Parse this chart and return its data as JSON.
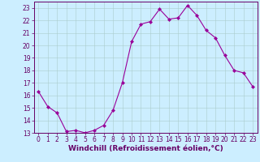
{
  "x": [
    0,
    1,
    2,
    3,
    4,
    5,
    6,
    7,
    8,
    9,
    10,
    11,
    12,
    13,
    14,
    15,
    16,
    17,
    18,
    19,
    20,
    21,
    22,
    23
  ],
  "y": [
    16.3,
    15.1,
    14.6,
    13.1,
    13.2,
    13.0,
    13.2,
    13.6,
    14.8,
    17.0,
    20.3,
    21.7,
    21.9,
    22.9,
    22.1,
    22.2,
    23.2,
    22.4,
    21.2,
    20.6,
    19.2,
    18.0,
    17.8,
    16.7
  ],
  "line_color": "#990099",
  "marker": "D",
  "marker_size": 2,
  "bg_color": "#cceeff",
  "grid_color": "#aacccc",
  "xlabel": "Windchill (Refroidissement éolien,°C)",
  "xlabel_color": "#660066",
  "xlim": [
    -0.5,
    23.5
  ],
  "ylim": [
    13,
    23.5
  ],
  "yticks": [
    13,
    14,
    15,
    16,
    17,
    18,
    19,
    20,
    21,
    22,
    23
  ],
  "xticks": [
    0,
    1,
    2,
    3,
    4,
    5,
    6,
    7,
    8,
    9,
    10,
    11,
    12,
    13,
    14,
    15,
    16,
    17,
    18,
    19,
    20,
    21,
    22,
    23
  ],
  "tick_color": "#660066",
  "tick_fontsize": 5.5,
  "xlabel_fontsize": 6.5,
  "spine_color": "#660066"
}
